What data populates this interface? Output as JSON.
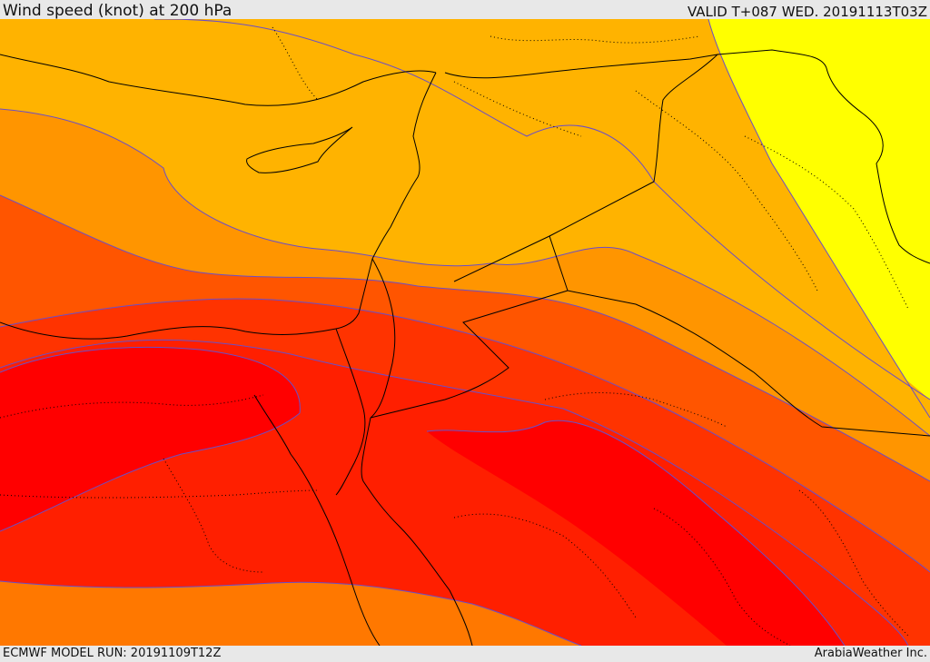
{
  "header": {
    "title": "Wind speed (knot) at 200 hPa",
    "valid": "VALID T+087 WED. 20191113T03Z"
  },
  "footer": {
    "model_run": "ECMWF MODEL RUN: 20191109T12Z",
    "credit": "ArabiaWeather Inc."
  },
  "map": {
    "colors": {
      "band_1": "#ffff00",
      "band_2": "#ffd400",
      "band_3": "#ffb300",
      "band_4": "#ff9500",
      "band_5": "#ff7800",
      "band_6": "#ff5500",
      "band_7": "#ff3300",
      "band_8": "#ff1f00",
      "band_9": "#ff0000",
      "contour": "#6a4ec8",
      "border": "#000000"
    }
  }
}
